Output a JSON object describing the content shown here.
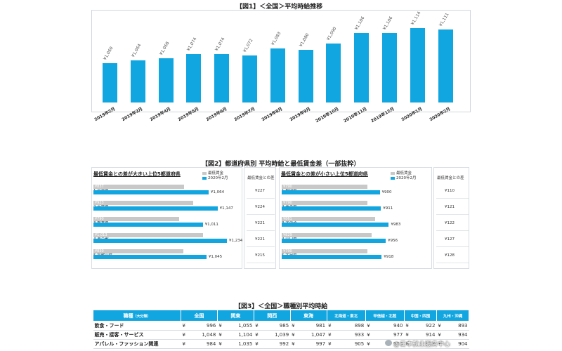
{
  "fig1": {
    "title": "【図1】＜全国＞平均時給推移",
    "chart_data": {
      "type": "bar",
      "title": "【図1】＜全国＞平均時給推移",
      "categories": [
        "2019年2月",
        "2019年3月",
        "2019年4月",
        "2019年5月",
        "2019年6月",
        "2019年7月",
        "2019年8月",
        "2019年9月",
        "2019年10月",
        "2019年11月",
        "2019年12月",
        "2020年1月",
        "2020年2月"
      ],
      "values": [
        1060,
        1064,
        1068,
        1074,
        1074,
        1072,
        1083,
        1080,
        1090,
        1106,
        1106,
        1114,
        1111
      ],
      "value_labels": [
        "¥1,060",
        "¥1,064",
        "¥1,068",
        "¥1,074",
        "¥1,074",
        "¥1,072",
        "¥1,083",
        "¥1,080",
        "¥1,090",
        "¥1,106",
        "¥1,106",
        "¥1,114",
        "¥1,111"
      ],
      "color": "#12a6e0",
      "ylim": [
        1000,
        1120
      ],
      "grid": false
    }
  },
  "fig2": {
    "title": "【図2】都道府県別 平均時給と最低賃金差（一部抜粋）",
    "legend": {
      "min_wage": "最低賃金",
      "feb2020": "2020年2月"
    },
    "diff_header": "最低賃金との差",
    "left": {
      "heading": "最低賃金との差が大きい上位5都道府県",
      "chart_data": {
        "type": "bar",
        "orientation": "horizontal",
        "categories": [
          "1.奈良県",
          "2.千葉県",
          "3.熊本県",
          "4.東京都",
          "5.和歌山県"
        ],
        "series": [
          {
            "name": "最低賃金",
            "values": [
              837,
              923,
              790,
              1013,
              830
            ],
            "labels": [
              "¥837",
              "¥923",
              "¥790",
              "¥1,013",
              "¥830"
            ],
            "color": "#c8c8c8"
          },
          {
            "name": "2020年2月",
            "values": [
              1064,
              1147,
              1011,
              1234,
              1045
            ],
            "labels": [
              "¥1,064",
              "¥1,147",
              "¥1,011",
              "¥1,234",
              "¥1,045"
            ],
            "color": "#12a6e0"
          }
        ],
        "xlim": [
          0,
          1300
        ]
      },
      "diffs": [
        "¥227",
        "¥224",
        "¥221",
        "¥221",
        "¥215"
      ]
    },
    "right": {
      "heading": "最低賃金との差が小さい上位5都道府県",
      "chart_data": {
        "type": "bar",
        "orientation": "horizontal",
        "categories": [
          "1.秋田県",
          "2.青森県",
          "3.北海道",
          "4.山口県",
          "5.大分県"
        ],
        "series": [
          {
            "name": "最低賃金",
            "values": [
              790,
              790,
              861,
              829,
              790
            ],
            "labels": [
              "¥790",
              "¥790",
              "¥861",
              "¥829",
              "¥790"
            ],
            "color": "#c8c8c8"
          },
          {
            "name": "2020年2月",
            "values": [
              900,
              911,
              983,
              956,
              918
            ],
            "labels": [
              "¥900",
              "¥911",
              "¥983",
              "¥956",
              "¥918"
            ],
            "color": "#12a6e0"
          }
        ],
        "xlim": [
          0,
          1100
        ]
      },
      "diffs": [
        "¥110",
        "¥121",
        "¥122",
        "¥127",
        "¥128"
      ]
    }
  },
  "fig3": {
    "title": "【図3】＜全国＞職種別平均時給",
    "chart_data": {
      "type": "table",
      "columns": [
        "職種（大分類）",
        "全国",
        "関東",
        "関西",
        "東海",
        "北海道・東北",
        "甲信越・北陸",
        "中国・四国",
        "九州・沖縄"
      ],
      "header_main": "職種",
      "header_sub": "（大分類）",
      "currency": "¥",
      "rows": [
        {
          "name": "飲食・フード",
          "values": [
            "996",
            "1,055",
            "985",
            "981",
            "898",
            "940",
            "922",
            "893"
          ]
        },
        {
          "name": "販売・接客・サービス",
          "values": [
            "1,048",
            "1,104",
            "1,039",
            "1,047",
            "933",
            "977",
            "914",
            "934"
          ]
        },
        {
          "name": "アパレル・ファッション関連",
          "values": [
            "984",
            "1,035",
            "992",
            "997",
            "905",
            "953",
            "918",
            "904"
          ]
        }
      ]
    }
  },
  "watermark": "@日本就业服务中心"
}
